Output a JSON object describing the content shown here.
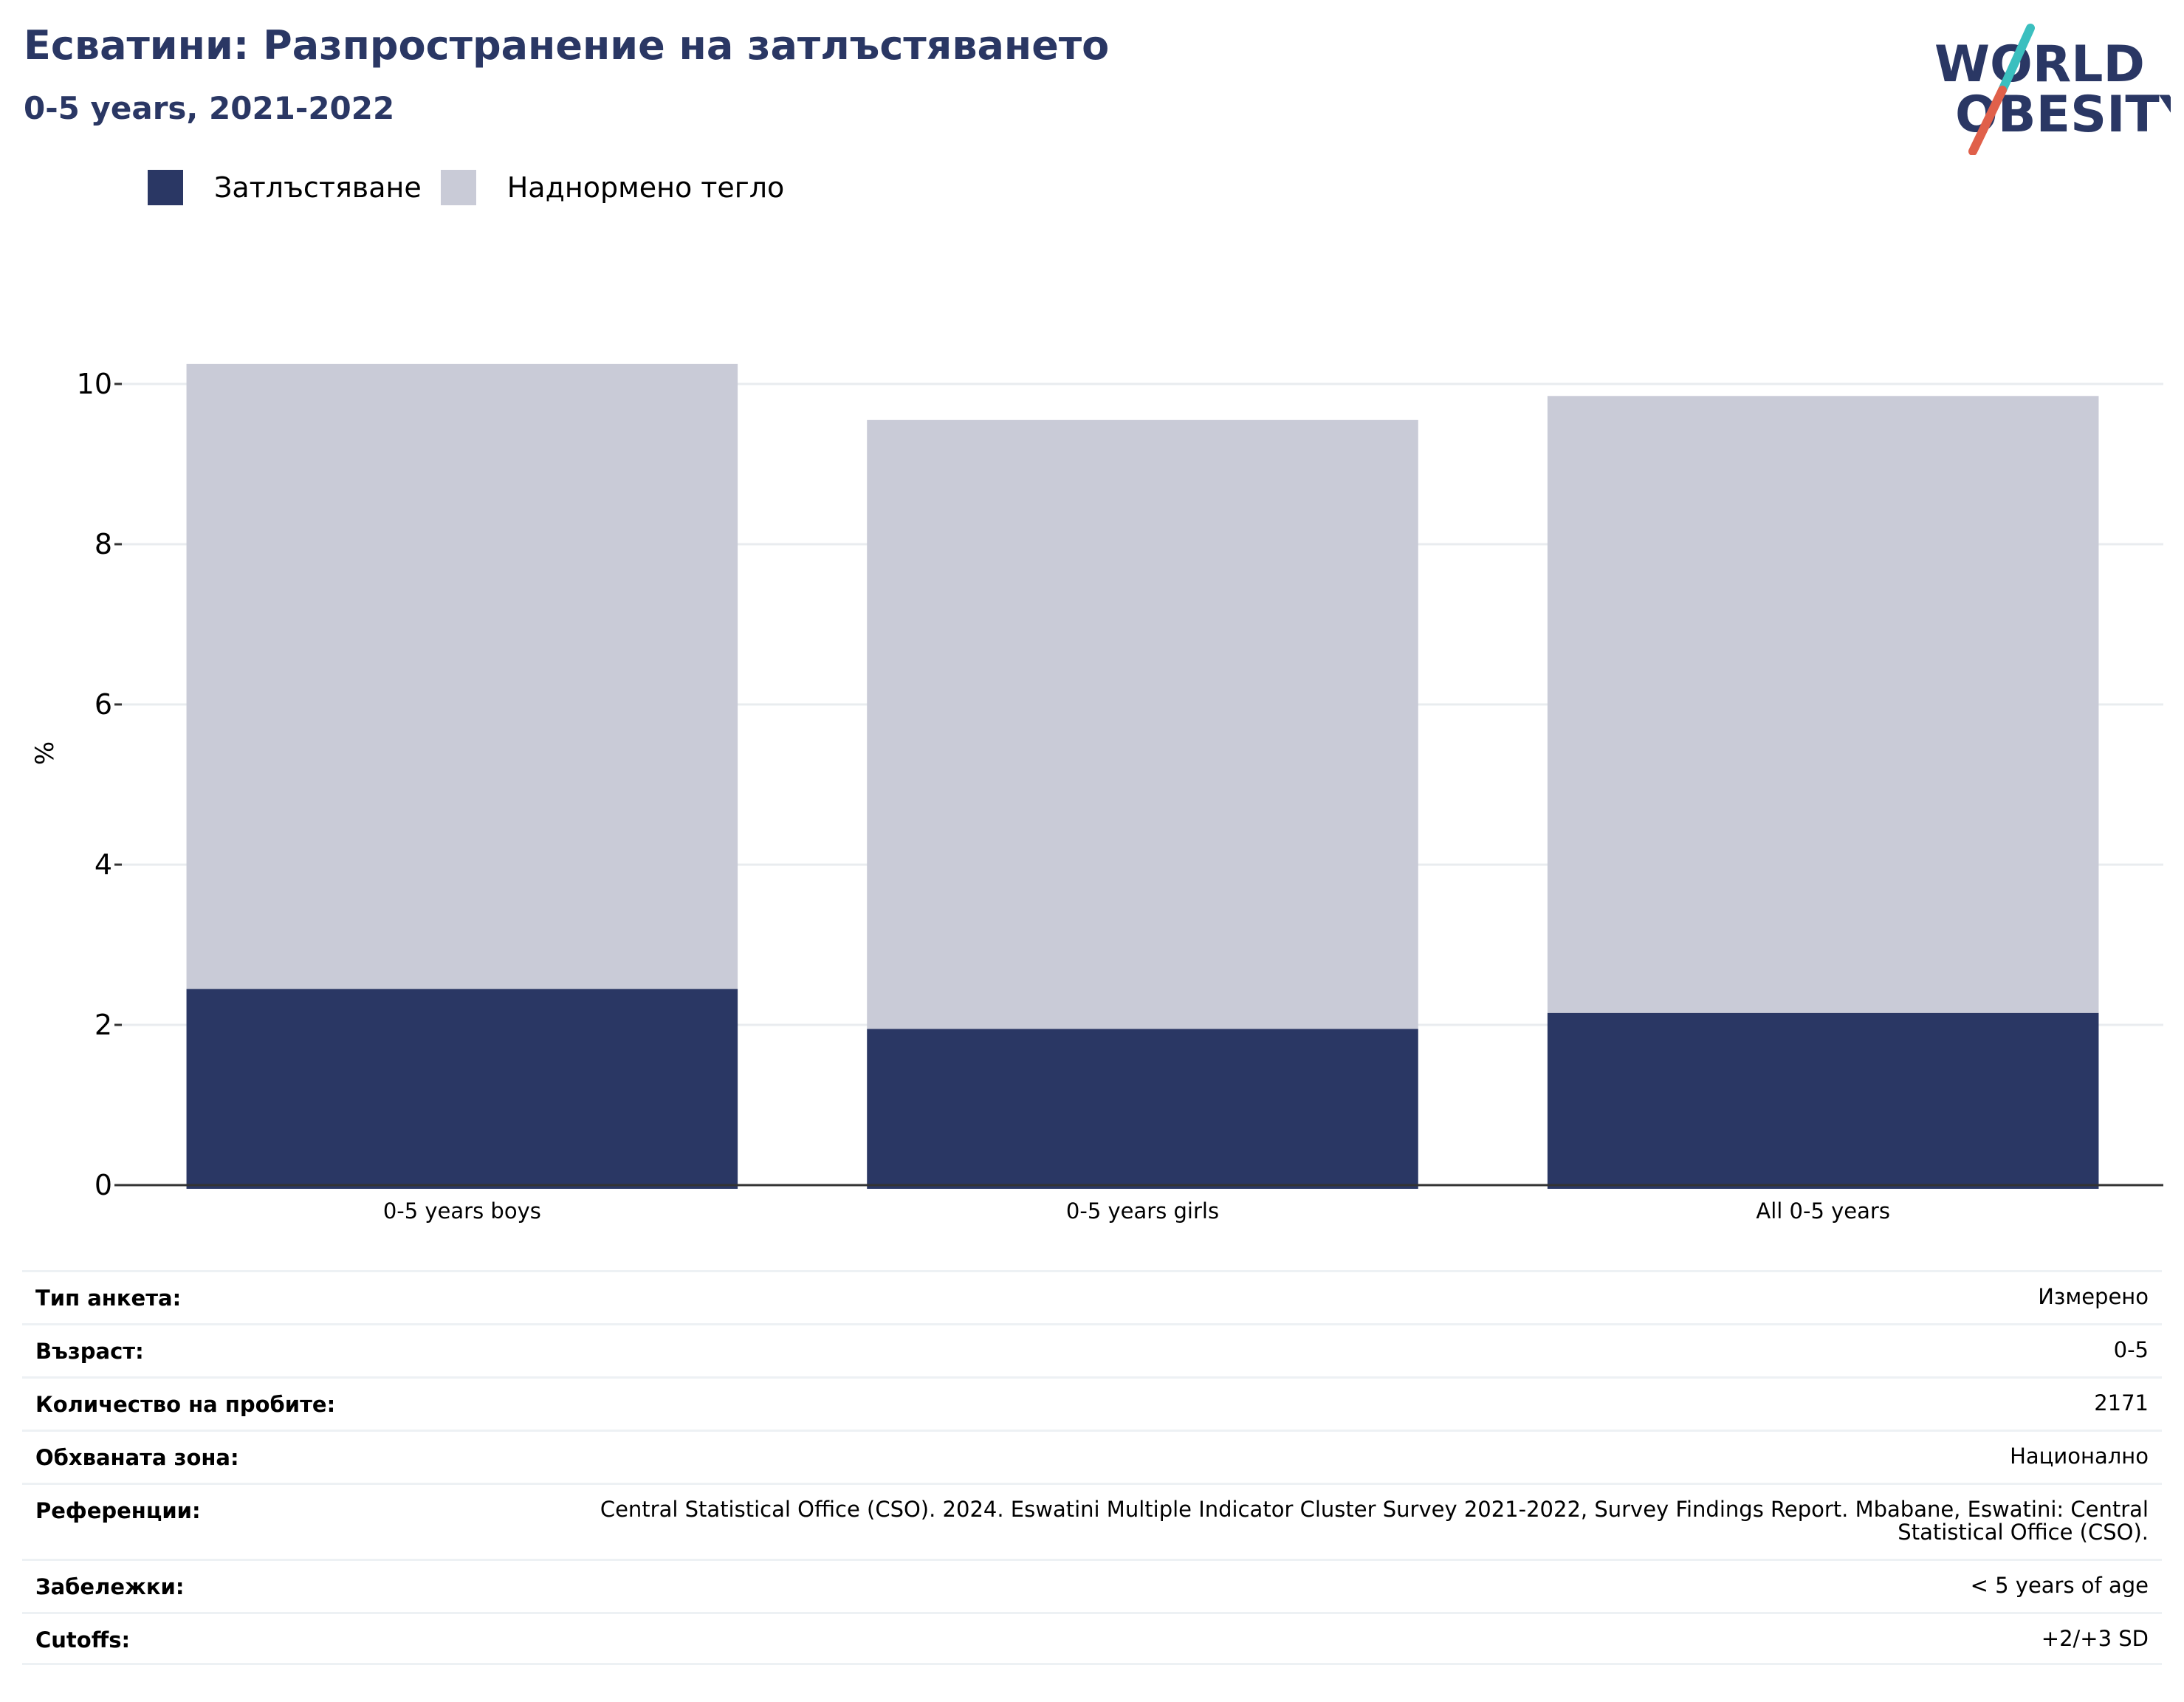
{
  "header": {
    "title": "Есватини: Разпространение на затлъстяването",
    "subtitle": "0-5 years, 2021-2022"
  },
  "logo": {
    "line1": "WORLD",
    "line2": "OBESITY"
  },
  "legend": [
    {
      "label": "Затлъстяване",
      "color": "#2a3764"
    },
    {
      "label": "Наднормено тегло",
      "color": "#c9cbd7"
    }
  ],
  "chart_data": {
    "type": "bar",
    "stacked": true,
    "categories": [
      "0-5 years boys",
      "0-5 years girls",
      "All 0-5 years"
    ],
    "series": [
      {
        "name": "Затлъстяване",
        "color": "#2a3764",
        "values": [
          2.45,
          1.95,
          2.15
        ]
      },
      {
        "name": "Наднормено тегло",
        "color": "#c9cbd7",
        "values": [
          7.8,
          7.6,
          7.7
        ]
      }
    ],
    "totals": [
      10.25,
      9.55,
      9.85
    ],
    "ylabel": "%",
    "ylim": [
      0,
      10.5
    ],
    "yticks": [
      0,
      2,
      4,
      6,
      8,
      10
    ],
    "grid": true,
    "legend_position": "top-left"
  },
  "info_table": [
    {
      "key": "Тип анкета:",
      "value": "Измерено"
    },
    {
      "key": "Възраст:",
      "value": "0-5"
    },
    {
      "key": "Количество на пробите:",
      "value": "2171"
    },
    {
      "key": "Обхваната зона:",
      "value": "Национално"
    },
    {
      "key": "Референции:",
      "value": "Central Statistical Office (CSO). 2024. Eswatini Multiple Indicator Cluster Survey 2021-2022, Survey Findings Report. Mbabane, Eswatini: Central Statistical Office (CSO)."
    },
    {
      "key": "Забележки:",
      "value": "< 5 years of age"
    },
    {
      "key": "Cutoffs:",
      "value": "+2/+3 SD"
    }
  ]
}
